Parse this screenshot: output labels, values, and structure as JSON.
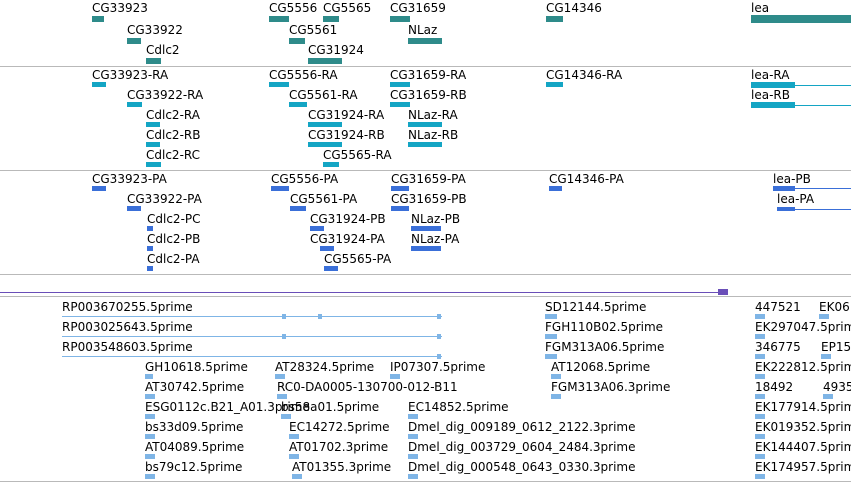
{
  "colors": {
    "gene": "#2e8b8a",
    "annotation": "#14a5c4",
    "transcript": "#3a6fd8",
    "est": "#7fb5e6",
    "scale": "#6a4fb8"
  },
  "track1": {
    "labels": [
      "CG33923",
      "CG33922",
      "Cdlc2",
      "CG5556",
      "CG5565",
      "CG5561",
      "CG31924",
      "CG31659",
      "NLaz",
      "CG14346",
      "lea"
    ]
  },
  "track2": {
    "labels": [
      "CG33923-RA",
      "CG33922-RA",
      "Cdlc2-RA",
      "Cdlc2-RB",
      "Cdlc2-RC",
      "CG5556-RA",
      "CG5561-RA",
      "CG31924-RA",
      "CG31924-RB",
      "CG5565-RA",
      "CG31659-RA",
      "CG31659-RB",
      "NLaz-RA",
      "NLaz-RB",
      "CG14346-RA",
      "lea-RA",
      "lea-RB"
    ]
  },
  "track3": {
    "labels": [
      "CG33923-PA",
      "CG33922-PA",
      "Cdlc2-PC",
      "Cdlc2-PB",
      "Cdlc2-PA",
      "CG5556-PA",
      "CG5561-PA",
      "CG31924-PB",
      "CG31924-PA",
      "CG5565-PA",
      "CG31659-PA",
      "CG31659-PB",
      "NLaz-PB",
      "NLaz-PA",
      "CG14346-PA",
      "lea-PB",
      "lea-PA"
    ]
  },
  "track4": {
    "labels": [
      "RP003670255.5prime",
      "RP003025643.5prime",
      "RP003548603.5prime",
      "GH10618.5prime",
      "AT28324.5prime",
      "IP07307.5prime",
      "AT30742.5prime",
      "RC0-DA0005-130700-012-B11",
      "ESG0112c.B21_A01.3prime",
      "bs58a01.5prime",
      "EC14852.5prime",
      "bs33d09.5prime",
      "EC14272.5prime",
      "Dmel_dig_009189_0612_2122.3prime",
      "AT04089.5prime",
      "AT01702.3prime",
      "Dmel_dig_003729_0604_2484.3prime",
      "bs79c12.5prime",
      "AT01355.3prime",
      "Dmel_dig_000548_0643_0330.3prime",
      "SD12144.5prime",
      "FGH110B02.5prime",
      "FGM313A06.5prime",
      "AT12068.5prime",
      "FGM313A06.3prime",
      "447521",
      "EK06",
      "EK297047.5prime",
      "346775",
      "EP15",
      "EK222812.5prime",
      "18492",
      "4935",
      "EK177914.5prime",
      "EK019352.5prime",
      "EK144407.5prime",
      "EK174957.5prime"
    ]
  }
}
